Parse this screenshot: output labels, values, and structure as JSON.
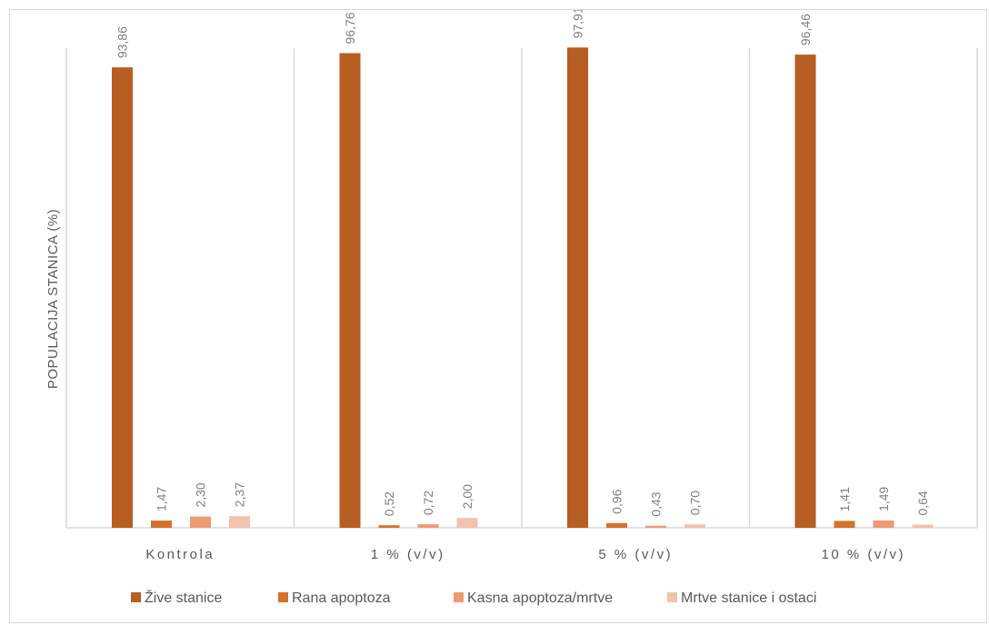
{
  "chart_data": {
    "type": "bar",
    "title": "",
    "xlabel": "",
    "ylabel": "POPULACIJA STANICA (%)",
    "ylim": [
      0,
      100
    ],
    "grid": false,
    "legend_position": "bottom",
    "categories": [
      "Kontrola",
      "1 % (v/v)",
      "5 % (v/v)",
      "10 % (v/v)"
    ],
    "series": [
      {
        "name": "Žive stanice",
        "color": "#b85e22",
        "values": [
          93.86,
          96.76,
          97.91,
          96.46
        ],
        "labels": [
          "93,86",
          "96,76",
          "97,91",
          "96,46"
        ]
      },
      {
        "name": "Rana apoptoza",
        "color": "#d4722c",
        "values": [
          1.47,
          0.52,
          0.96,
          1.41
        ],
        "labels": [
          "1,47",
          "0,52",
          "0,96",
          "1,41"
        ]
      },
      {
        "name": "Kasna apoptoza/mrtve",
        "color": "#ee9a72",
        "values": [
          2.3,
          0.72,
          0.43,
          1.49
        ],
        "labels": [
          "2,30",
          "0,72",
          "0,43",
          "1,49"
        ]
      },
      {
        "name": "Mrtve stanice i ostaci",
        "color": "#f3c1ae",
        "values": [
          2.37,
          2.0,
          0.7,
          0.64
        ],
        "labels": [
          "2,37",
          "2,00",
          "0,70",
          "0,64"
        ]
      }
    ]
  }
}
